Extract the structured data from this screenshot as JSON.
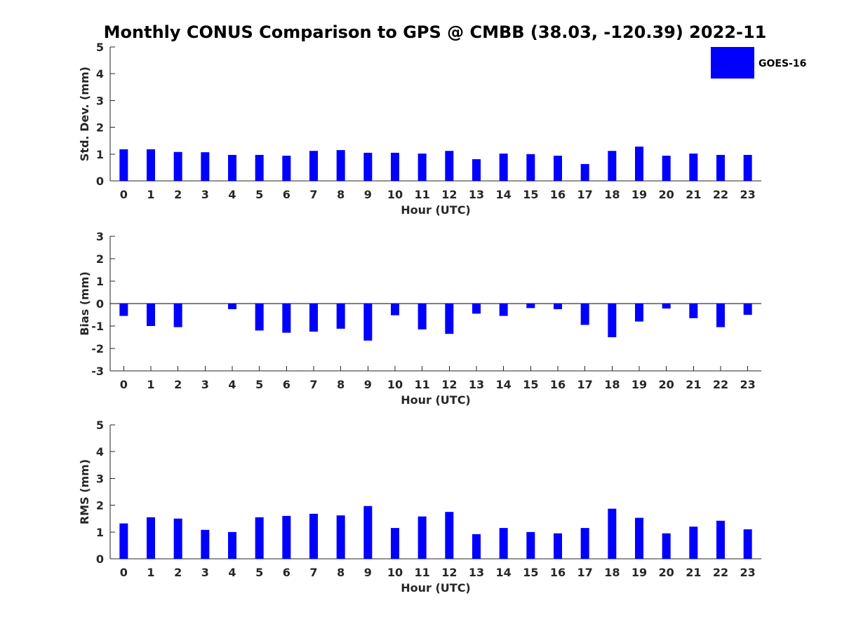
{
  "chart_data": {
    "title": "Monthly CONUS Comparison to GPS @ CMBB (38.03, -120.39) 2022-11",
    "legend": {
      "label": "GOES-16",
      "color": "#0000ff",
      "placement": "top-right"
    },
    "panels": [
      {
        "type": "bar",
        "ylabel": "Std. Dev. (mm)",
        "xlabel": "Hour (UTC)",
        "ylim": [
          0,
          5
        ],
        "yticks": [
          0,
          1,
          2,
          3,
          4,
          5
        ],
        "categories": [
          "0",
          "1",
          "2",
          "3",
          "4",
          "5",
          "6",
          "7",
          "8",
          "9",
          "10",
          "11",
          "12",
          "13",
          "14",
          "15",
          "16",
          "17",
          "18",
          "19",
          "20",
          "21",
          "22",
          "23"
        ],
        "series": [
          {
            "name": "GOES-16",
            "values": [
              1.18,
              1.18,
              1.08,
              1.07,
              0.97,
              0.97,
              0.94,
              1.12,
              1.15,
              1.05,
              1.05,
              1.02,
              1.12,
              0.81,
              1.02,
              1.0,
              0.94,
              0.63,
              1.12,
              1.28,
              0.94,
              1.02,
              0.97,
              0.97
            ]
          }
        ]
      },
      {
        "type": "bar",
        "ylabel": "Bias (mm)",
        "xlabel": "Hour (UTC)",
        "ylim": [
          -3,
          3
        ],
        "yticks": [
          -3,
          -2,
          -1,
          0,
          1,
          2,
          3
        ],
        "categories": [
          "0",
          "1",
          "2",
          "3",
          "4",
          "5",
          "6",
          "7",
          "8",
          "9",
          "10",
          "11",
          "12",
          "13",
          "14",
          "15",
          "16",
          "17",
          "18",
          "19",
          "20",
          "21",
          "22",
          "23"
        ],
        "series": [
          {
            "name": "GOES-16",
            "values": [
              -0.55,
              -1.0,
              -1.05,
              0.0,
              -0.25,
              -1.2,
              -1.3,
              -1.25,
              -1.12,
              -1.65,
              -0.52,
              -1.15,
              -1.35,
              -0.45,
              -0.55,
              -0.2,
              -0.25,
              -0.95,
              -1.5,
              -0.8,
              -0.22,
              -0.65,
              -1.05,
              -0.5
            ]
          }
        ]
      },
      {
        "type": "bar",
        "ylabel": "RMS (mm)",
        "xlabel": "Hour (UTC)",
        "ylim": [
          0,
          5
        ],
        "yticks": [
          0,
          1,
          2,
          3,
          4,
          5
        ],
        "categories": [
          "0",
          "1",
          "2",
          "3",
          "4",
          "5",
          "6",
          "7",
          "8",
          "9",
          "10",
          "11",
          "12",
          "13",
          "14",
          "15",
          "16",
          "17",
          "18",
          "19",
          "20",
          "21",
          "22",
          "23"
        ],
        "series": [
          {
            "name": "GOES-16",
            "values": [
              1.32,
              1.55,
              1.5,
              1.08,
              1.0,
              1.55,
              1.6,
              1.68,
              1.62,
              1.97,
              1.15,
              1.58,
              1.75,
              0.92,
              1.15,
              1.0,
              0.95,
              1.15,
              1.87,
              1.53,
              0.95,
              1.2,
              1.42,
              1.1
            ]
          }
        ]
      }
    ]
  }
}
